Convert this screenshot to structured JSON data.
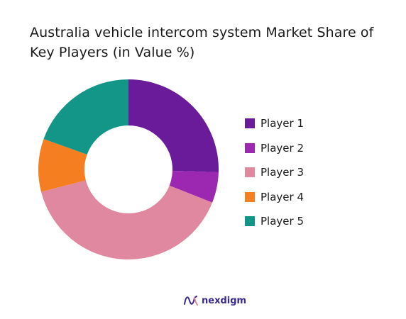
{
  "title": "Australia vehicle intercom system Market Share of Key Players (in Value %)",
  "brand": {
    "name": "nexdigm",
    "logo_icon": "nexdigm-wave-logo"
  },
  "colors": {
    "player1": "#6a1b9a",
    "player2": "#9c27b0",
    "player3": "#e0889f",
    "player4": "#f57f20",
    "player5": "#139688",
    "brand": "#3a2a8c"
  },
  "chart_data": {
    "type": "pie",
    "variant": "donut",
    "title": "Australia vehicle intercom system Market Share of Key Players (in Value %)",
    "legend_position": "right",
    "categories": [
      "Player 1",
      "Player 2",
      "Player 3",
      "Player 4",
      "Player 5"
    ],
    "values": [
      25.5,
      5.5,
      40,
      9.5,
      19.5
    ],
    "colors": [
      "#6a1b9a",
      "#9c27b0",
      "#e0889f",
      "#f57f20",
      "#139688"
    ]
  }
}
